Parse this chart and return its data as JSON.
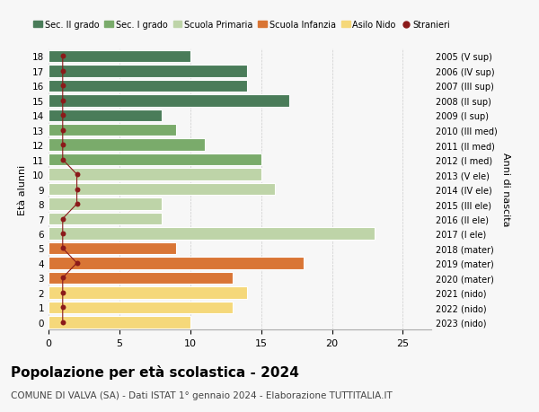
{
  "ages": [
    18,
    17,
    16,
    15,
    14,
    13,
    12,
    11,
    10,
    9,
    8,
    7,
    6,
    5,
    4,
    3,
    2,
    1,
    0
  ],
  "years": [
    "2005 (V sup)",
    "2006 (IV sup)",
    "2007 (III sup)",
    "2008 (II sup)",
    "2009 (I sup)",
    "2010 (III med)",
    "2011 (II med)",
    "2012 (I med)",
    "2013 (V ele)",
    "2014 (IV ele)",
    "2015 (III ele)",
    "2016 (II ele)",
    "2017 (I ele)",
    "2018 (mater)",
    "2019 (mater)",
    "2020 (mater)",
    "2021 (nido)",
    "2022 (nido)",
    "2023 (nido)"
  ],
  "bar_values": [
    10,
    14,
    14,
    17,
    8,
    9,
    11,
    15,
    15,
    16,
    8,
    8,
    23,
    9,
    18,
    13,
    14,
    13,
    10
  ],
  "bar_colors": [
    "#4a7c59",
    "#4a7c59",
    "#4a7c59",
    "#4a7c59",
    "#4a7c59",
    "#7aab6b",
    "#7aab6b",
    "#7aab6b",
    "#bed4a8",
    "#bed4a8",
    "#bed4a8",
    "#bed4a8",
    "#bed4a8",
    "#d97535",
    "#d97535",
    "#d97535",
    "#f5d87a",
    "#f5d87a",
    "#f5d87a"
  ],
  "stranieri_x": [
    1,
    1,
    1,
    1,
    1,
    1,
    1,
    1,
    2,
    2,
    2,
    1,
    1,
    1,
    2,
    1,
    1,
    1,
    1
  ],
  "title": "Popolazione per età scolastica - 2024",
  "subtitle": "COMUNE DI VALVA (SA) - Dati ISTAT 1° gennaio 2024 - Elaborazione TUTTITALIA.IT",
  "ylabel_left": "Età alunni",
  "ylabel_right": "Anni di nascita",
  "xlim": [
    0,
    27
  ],
  "xticks": [
    0,
    5,
    10,
    15,
    20,
    25
  ],
  "color_sec2": "#4a7c59",
  "color_sec1": "#7aab6b",
  "color_pri": "#bed4a8",
  "color_inf": "#d97535",
  "color_nido": "#f5d87a",
  "color_stranieri": "#8b1a1a",
  "legend_labels": [
    "Sec. II grado",
    "Sec. I grado",
    "Scuola Primaria",
    "Scuola Infanzia",
    "Asilo Nido",
    "Stranieri"
  ],
  "bg_color": "#f7f7f7",
  "bar_height": 0.82,
  "title_fontsize": 11,
  "subtitle_fontsize": 7.5
}
